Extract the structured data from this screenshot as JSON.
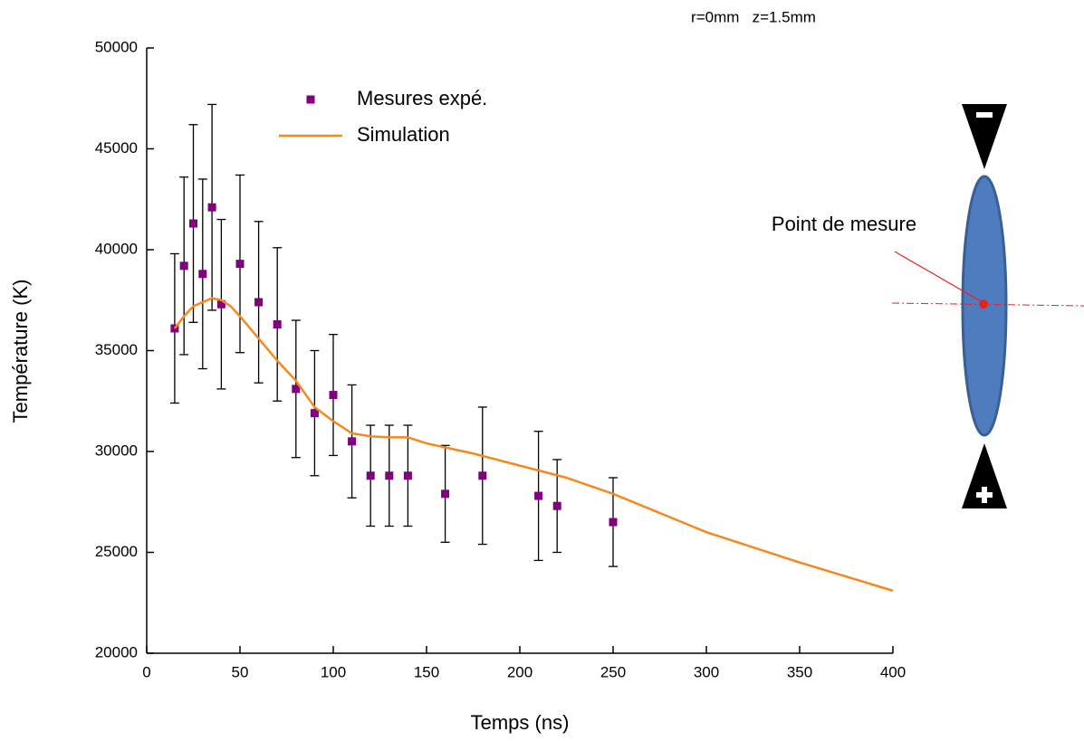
{
  "chart_data": {
    "type": "scatter",
    "xlabel": "Temps (ns)",
    "ylabel": "Température (K)",
    "xlim": [
      0,
      400
    ],
    "ylim": [
      20000,
      50000
    ],
    "xticks": [
      0,
      50,
      100,
      150,
      200,
      250,
      300,
      350,
      400
    ],
    "yticks": [
      20000,
      25000,
      30000,
      35000,
      40000,
      45000,
      50000
    ],
    "grid": false,
    "legend": "upper center",
    "annotations": [
      "r=0mm   z=1.5mm",
      "Point de mesure"
    ],
    "series": [
      {
        "name": "Mesures expé.",
        "type": "scatter",
        "color": "#800080",
        "x": [
          15,
          20,
          25,
          30,
          35,
          40,
          50,
          60,
          70,
          80,
          90,
          100,
          110,
          120,
          130,
          140,
          160,
          180,
          210,
          220,
          250
        ],
        "values": [
          36100,
          39200,
          41300,
          38800,
          42100,
          37300,
          39300,
          37400,
          36300,
          33100,
          31900,
          32800,
          30500,
          28800,
          28800,
          28800,
          27900,
          28800,
          27800,
          27300,
          26500
        ],
        "errors": [
          3700,
          4400,
          4900,
          4700,
          5100,
          4200,
          4400,
          4000,
          3800,
          3400,
          3100,
          3000,
          2800,
          2500,
          2500,
          2500,
          2400,
          3400,
          3200,
          2300,
          2200
        ]
      },
      {
        "name": "Simulation",
        "type": "line",
        "color": "#f5891f",
        "x": [
          15,
          20,
          25,
          30,
          35,
          40,
          45,
          50,
          60,
          70,
          80,
          90,
          100,
          110,
          120,
          130,
          140,
          150,
          175,
          200,
          225,
          250,
          300,
          350,
          400
        ],
        "values": [
          36100,
          36700,
          37200,
          37400,
          37600,
          37500,
          37200,
          36700,
          35600,
          34500,
          33500,
          32200,
          31500,
          30900,
          30750,
          30700,
          30700,
          30400,
          29900,
          29300,
          28700,
          27900,
          26000,
          24500,
          23100
        ]
      }
    ]
  }
}
